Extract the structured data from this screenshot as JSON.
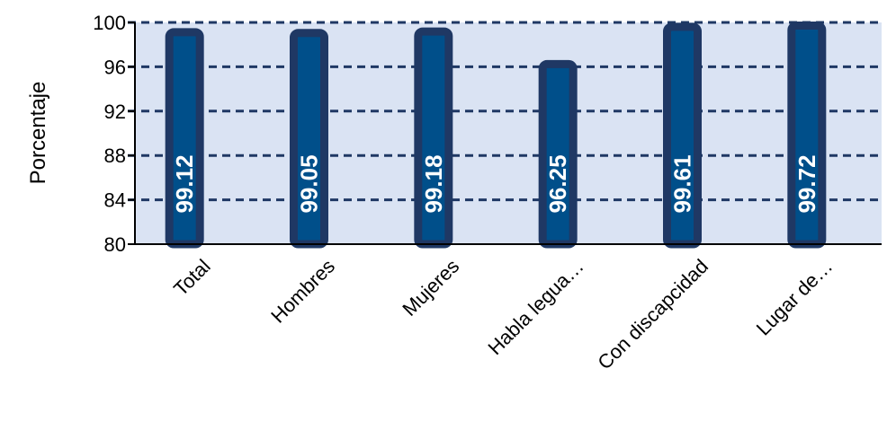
{
  "chart_data": {
    "type": "bar",
    "categories": [
      "Total",
      "Hombres",
      "Mujeres",
      "Habla legua…",
      "Con discapcidad",
      "Lugar de…"
    ],
    "values": [
      99.12,
      99.05,
      99.18,
      96.25,
      99.61,
      99.72
    ],
    "data_labels": [
      "99.12",
      "99.05",
      "99.18",
      "96.25",
      "99.61",
      "99.72"
    ],
    "title": "",
    "xlabel": "",
    "ylabel": "Porcentaje",
    "ylim": [
      80,
      100
    ],
    "yticks": [
      80,
      84,
      88,
      92,
      96,
      100
    ],
    "grid": true,
    "grid_style": "dashed",
    "legend": "none",
    "colors": {
      "plot_background": "#dae3f3",
      "bar_fill": "#004f8a",
      "bar_border": "#1f3864",
      "grid": "#1f3864",
      "data_label": "#ffffff"
    }
  }
}
